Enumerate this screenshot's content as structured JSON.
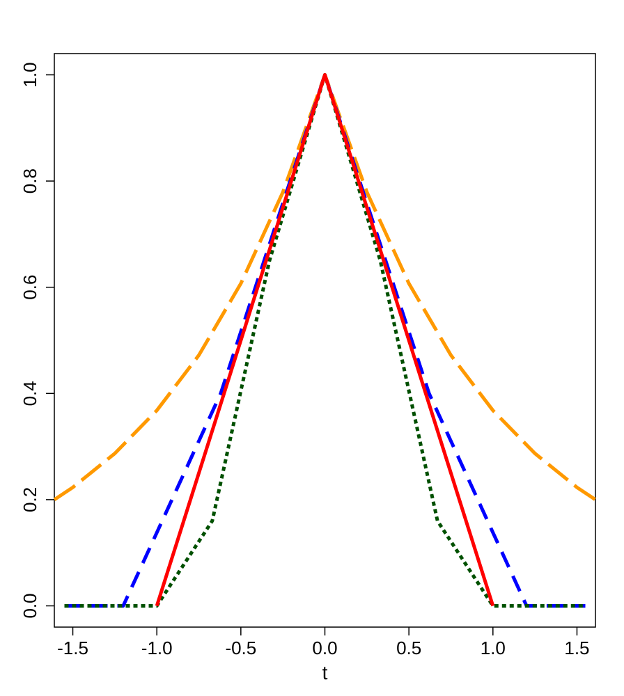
{
  "chart_data": {
    "type": "line",
    "xlabel": "t",
    "ylabel": "",
    "title": "",
    "xlim": [
      -1.61,
      1.61
    ],
    "ylim": [
      -0.04,
      1.04
    ],
    "x_ticks": [
      "-1.5",
      "-1.0",
      "-0.5",
      "0.0",
      "0.5",
      "1.0",
      "1.5"
    ],
    "y_ticks": [
      "0.0",
      "0.2",
      "0.4",
      "0.6",
      "0.8",
      "1.0"
    ],
    "grid": false,
    "legend": "none",
    "series": [
      {
        "color": "#ff9900",
        "dash": "longdash",
        "x": [
          -1.61,
          -1.5,
          -1.25,
          -1.0,
          -0.75,
          -0.5,
          -0.25,
          0.0,
          0.25,
          0.5,
          0.75,
          1.0,
          1.25,
          1.5,
          1.61
        ],
        "y": [
          0.2,
          0.223,
          0.287,
          0.368,
          0.472,
          0.607,
          0.779,
          1.0,
          0.779,
          0.607,
          0.472,
          0.368,
          0.287,
          0.223,
          0.2
        ]
      },
      {
        "color": "#0000ff",
        "dash": "dashed",
        "x": [
          -1.55,
          -1.2,
          -0.62,
          0.0,
          0.62,
          1.2,
          1.55
        ],
        "y": [
          0.0,
          0.0,
          0.4,
          1.0,
          0.4,
          0.0,
          0.0
        ]
      },
      {
        "color": "#005000",
        "dash": "dotted",
        "x": [
          -1.55,
          -1.0,
          -0.67,
          -0.33,
          0.0,
          0.33,
          0.67,
          1.0,
          1.55
        ],
        "y": [
          0.0,
          0.0,
          0.16,
          0.65,
          1.0,
          0.65,
          0.16,
          0.0,
          0.0
        ]
      },
      {
        "color": "#ff0000",
        "dash": "solid",
        "x": [
          -1.0,
          0.0,
          1.0
        ],
        "y": [
          0.0,
          1.0,
          0.0
        ]
      }
    ]
  }
}
